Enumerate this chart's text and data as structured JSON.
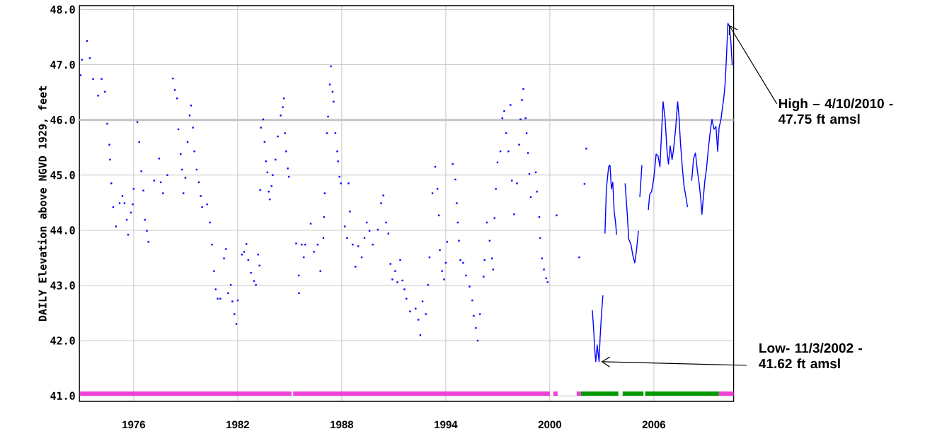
{
  "chart_data": {
    "type": "scatter",
    "ylabel": "DAILY Elevation above NGVD 1929, feet",
    "xlim": [
      1972.87,
      2010.6
    ],
    "ylim": [
      40.9,
      48.07
    ],
    "xticks": [
      1976,
      1982,
      1988,
      1994,
      2000,
      2006
    ],
    "yticks": [
      {
        "value": 41,
        "label": "41.0"
      },
      {
        "value": 42,
        "label": "42.0"
      },
      {
        "value": 43,
        "label": "43.0"
      },
      {
        "value": 44,
        "label": "44.0"
      },
      {
        "value": 45,
        "label": "45.0"
      },
      {
        "value": 46,
        "label": "46.0"
      },
      {
        "value": 47,
        "label": "47.0"
      },
      {
        "value": 48,
        "label": "48.0"
      }
    ],
    "grid": true,
    "ref_lines": [
      {
        "axis": "y",
        "value": 46,
        "color": "#c4c4c4"
      }
    ],
    "annotations": [
      {
        "text": "High – 4/10/2010 - 47.75 ft amsl",
        "x": 2010.27,
        "y": 47.75
      },
      {
        "text": "Low- 11/3/2002  - 41.62 ft amsl",
        "x": 2002.84,
        "y": 41.62
      }
    ],
    "series": [
      {
        "marker": "square",
        "color": "#0000ff",
        "x": [
          1972.94,
          1973.02,
          1973.31,
          1973.47,
          1973.66,
          1973.95,
          1974.15,
          1974.34,
          1974.47,
          1974.6,
          1974.63,
          1974.71,
          1974.82,
          1974.98,
          1975.19,
          1975.35,
          1975.47,
          1975.6,
          1975.68,
          1975.84,
          1975.95,
          1976.0,
          1976.21,
          1976.32,
          1976.44,
          1976.56,
          1976.65,
          1976.76,
          1976.85,
          1977.18,
          1977.47,
          1977.56,
          1977.69,
          1977.94,
          1978.26,
          1978.37,
          1978.5,
          1978.58,
          1978.71,
          1978.79,
          1978.87,
          1978.98,
          1979.11,
          1979.23,
          1979.31,
          1979.42,
          1979.5,
          1979.63,
          1979.76,
          1979.87,
          1979.95,
          1980.24,
          1980.4,
          1980.52,
          1980.63,
          1980.73,
          1980.84,
          1981.0,
          1981.21,
          1981.32,
          1981.45,
          1981.6,
          1981.69,
          1981.81,
          1981.92,
          1982.0,
          1982.24,
          1982.37,
          1982.5,
          1982.61,
          1982.77,
          1982.94,
          1983.05,
          1983.18,
          1983.26,
          1983.3,
          1983.34,
          1983.47,
          1983.55,
          1983.63,
          1983.71,
          1983.79,
          1983.85,
          1983.95,
          1984.02,
          1984.18,
          1984.31,
          1984.48,
          1984.6,
          1984.66,
          1984.73,
          1984.79,
          1984.89,
          1984.95,
          1985.37,
          1985.52,
          1985.53,
          1985.69,
          1985.81,
          1985.89,
          1986.21,
          1986.4,
          1986.61,
          1986.77,
          1986.94,
          1986.98,
          1987.02,
          1987.15,
          1987.21,
          1987.31,
          1987.37,
          1987.47,
          1987.53,
          1987.63,
          1987.74,
          1987.79,
          1987.87,
          1987.95,
          1988.18,
          1988.31,
          1988.39,
          1988.47,
          1988.63,
          1988.79,
          1988.95,
          1989.15,
          1989.31,
          1989.44,
          1989.6,
          1989.79,
          1990.08,
          1990.27,
          1990.4,
          1990.56,
          1990.69,
          1990.81,
          1990.92,
          1991.08,
          1991.21,
          1991.37,
          1991.5,
          1991.61,
          1991.73,
          1991.94,
          1992.26,
          1992.42,
          1992.53,
          1992.66,
          1992.85,
          1992.98,
          1993.06,
          1993.23,
          1993.39,
          1993.52,
          1993.6,
          1993.66,
          1993.79,
          1993.9,
          1994.0,
          1994.08,
          1994.4,
          1994.55,
          1994.63,
          1994.69,
          1994.76,
          1994.84,
          1995.0,
          1995.16,
          1995.37,
          1995.53,
          1995.61,
          1995.73,
          1995.84,
          1995.97,
          1996.18,
          1996.24,
          1996.37,
          1996.53,
          1996.66,
          1996.73,
          1996.81,
          1996.89,
          1996.98,
          1997.15,
          1997.26,
          1997.37,
          1997.48,
          1997.61,
          1997.73,
          1997.81,
          1997.94,
          1998.1,
          1998.23,
          1998.31,
          1998.39,
          1998.47,
          1998.6,
          1998.66,
          1998.74,
          1998.82,
          1998.9,
          1999.19,
          1999.26,
          1999.39,
          1999.44,
          1999.55,
          1999.66,
          1999.79,
          1999.87,
          2000.39,
          2001.69,
          2002.0,
          2002.1
        ],
        "values": [
          46.81,
          47.09,
          47.43,
          47.12,
          46.74,
          46.44,
          46.74,
          46.51,
          45.93,
          45.55,
          45.28,
          44.85,
          44.42,
          44.07,
          44.49,
          44.62,
          44.49,
          44.19,
          43.92,
          44.32,
          44.47,
          44.75,
          45.96,
          45.6,
          45.07,
          44.72,
          44.19,
          43.99,
          43.79,
          44.9,
          45.3,
          44.87,
          44.67,
          45.0,
          46.75,
          46.54,
          46.39,
          45.83,
          45.38,
          45.1,
          44.67,
          44.95,
          45.6,
          46.08,
          46.26,
          45.86,
          45.43,
          45.1,
          44.87,
          44.62,
          44.42,
          44.47,
          44.14,
          43.74,
          43.26,
          42.93,
          42.76,
          42.76,
          43.49,
          43.66,
          42.86,
          43.01,
          42.71,
          42.48,
          42.3,
          42.73,
          43.56,
          43.61,
          43.75,
          43.46,
          43.23,
          43.08,
          43.01,
          43.56,
          43.36,
          44.73,
          45.86,
          46.01,
          45.6,
          45.25,
          45.05,
          44.7,
          44.56,
          44.8,
          45.0,
          45.28,
          45.7,
          46.08,
          46.23,
          46.39,
          45.76,
          45.43,
          45.12,
          44.97,
          43.76,
          43.18,
          42.86,
          43.74,
          43.51,
          43.74,
          44.12,
          43.61,
          43.74,
          43.26,
          43.86,
          44.24,
          44.67,
          45.76,
          46.06,
          46.64,
          46.97,
          46.51,
          46.33,
          45.76,
          45.43,
          45.25,
          44.97,
          44.85,
          44.07,
          43.86,
          44.85,
          44.34,
          43.74,
          43.34,
          43.71,
          43.51,
          43.86,
          44.14,
          43.99,
          43.74,
          44.01,
          44.49,
          44.63,
          44.14,
          43.94,
          43.39,
          43.11,
          43.26,
          43.06,
          43.46,
          43.09,
          42.93,
          42.76,
          42.53,
          42.58,
          42.38,
          42.1,
          42.71,
          42.48,
          43.01,
          43.51,
          44.67,
          45.15,
          44.75,
          44.27,
          43.64,
          43.26,
          43.11,
          43.41,
          43.79,
          45.2,
          44.92,
          44.49,
          44.14,
          43.81,
          43.46,
          43.41,
          43.18,
          42.98,
          42.73,
          42.45,
          42.23,
          42.0,
          42.48,
          43.16,
          43.46,
          44.14,
          43.81,
          43.49,
          43.29,
          44.22,
          44.75,
          45.23,
          45.43,
          46.03,
          46.16,
          45.76,
          45.43,
          46.27,
          44.9,
          44.29,
          44.85,
          45.55,
          46.01,
          46.36,
          46.56,
          46.03,
          45.76,
          45.4,
          45.02,
          44.6,
          45.05,
          44.7,
          44.24,
          43.86,
          43.49,
          43.29,
          43.13,
          43.06,
          44.27,
          43.51,
          44.84,
          45.48
        ]
      },
      {
        "type": "line",
        "color": "#0000ff",
        "x": [
          2002.45,
          2002.53,
          2002.58,
          2002.65,
          2002.73,
          2002.84,
          2002.9,
          2002.98,
          2003.06,
          2003.12,
          2003.18,
          2003.26,
          2003.39,
          2003.47,
          2003.55,
          2003.63,
          2003.71,
          2003.79,
          2003.85,
          2004.1,
          2004.34,
          2004.47,
          2004.55,
          2004.68,
          2004.79,
          2004.9,
          2005.0,
          2005.11,
          2005.15,
          2005.19,
          2005.31,
          2005.5,
          2005.68,
          2005.76,
          2005.87,
          2006.0,
          2006.13,
          2006.24,
          2006.35,
          2006.45,
          2006.53,
          2006.65,
          2006.76,
          2006.84,
          2006.94,
          2007.05,
          2007.13,
          2007.26,
          2007.37,
          2007.45,
          2007.53,
          2007.65,
          2007.74,
          2007.85,
          2007.94,
          2008.05,
          2008.18,
          2008.29,
          2008.4,
          2008.5,
          2008.61,
          2008.71,
          2008.77,
          2008.87,
          2008.94,
          2009.03,
          2009.15,
          2009.26,
          2009.35,
          2009.47,
          2009.58,
          2009.68,
          2009.76,
          2009.87,
          2009.95,
          2010.03,
          2010.11,
          2010.19,
          2010.27,
          2010.35,
          2010.44,
          2010.52
        ],
        "values": [
          42.55,
          42.2,
          41.87,
          41.62,
          41.92,
          41.62,
          42.06,
          42.48,
          42.82,
          null,
          43.94,
          44.75,
          45.15,
          45.18,
          44.75,
          44.87,
          44.34,
          44.14,
          43.92,
          null,
          44.85,
          44.27,
          43.84,
          43.74,
          43.54,
          43.41,
          43.64,
          43.99,
          null,
          44.6,
          45.18,
          null,
          44.37,
          44.65,
          44.7,
          44.95,
          45.38,
          45.35,
          45.15,
          45.81,
          46.33,
          46.01,
          45.43,
          45.2,
          45.53,
          45.28,
          45.45,
          45.86,
          46.33,
          46.06,
          45.6,
          45.1,
          44.8,
          44.6,
          44.42,
          null,
          44.9,
          45.3,
          45.4,
          45.1,
          44.85,
          44.55,
          44.29,
          44.65,
          44.9,
          45.1,
          45.5,
          45.81,
          46.01,
          45.83,
          45.88,
          45.43,
          45.86,
          46.01,
          46.21,
          46.39,
          46.66,
          47.17,
          47.75,
          47.7,
          47.42,
          46.99
        ]
      },
      {
        "type": "line",
        "color": "#f040d8",
        "x": [
          1972.9,
          1985.1,
          1985.15,
          1985.2,
          2000.0,
          2000.1,
          2000.2,
          2000.45,
          2001.0,
          2001.55,
          2001.8,
          2005.0,
          2009.75,
          2010.6
        ],
        "values": [
          41.04,
          41.04,
          null,
          41.04,
          41.04,
          null,
          41.04,
          41.04,
          null,
          41.04,
          41.04,
          null,
          41.04,
          41.04
        ]
      },
      {
        "type": "line",
        "color": "#009900",
        "x": [
          2001.8,
          2003.95,
          2004.05,
          2004.2,
          2005.4,
          2005.45,
          2005.5,
          2009.75
        ],
        "values": [
          41.04,
          41.04,
          null,
          41.04,
          41.04,
          null,
          41.04,
          41.04
        ]
      }
    ]
  }
}
